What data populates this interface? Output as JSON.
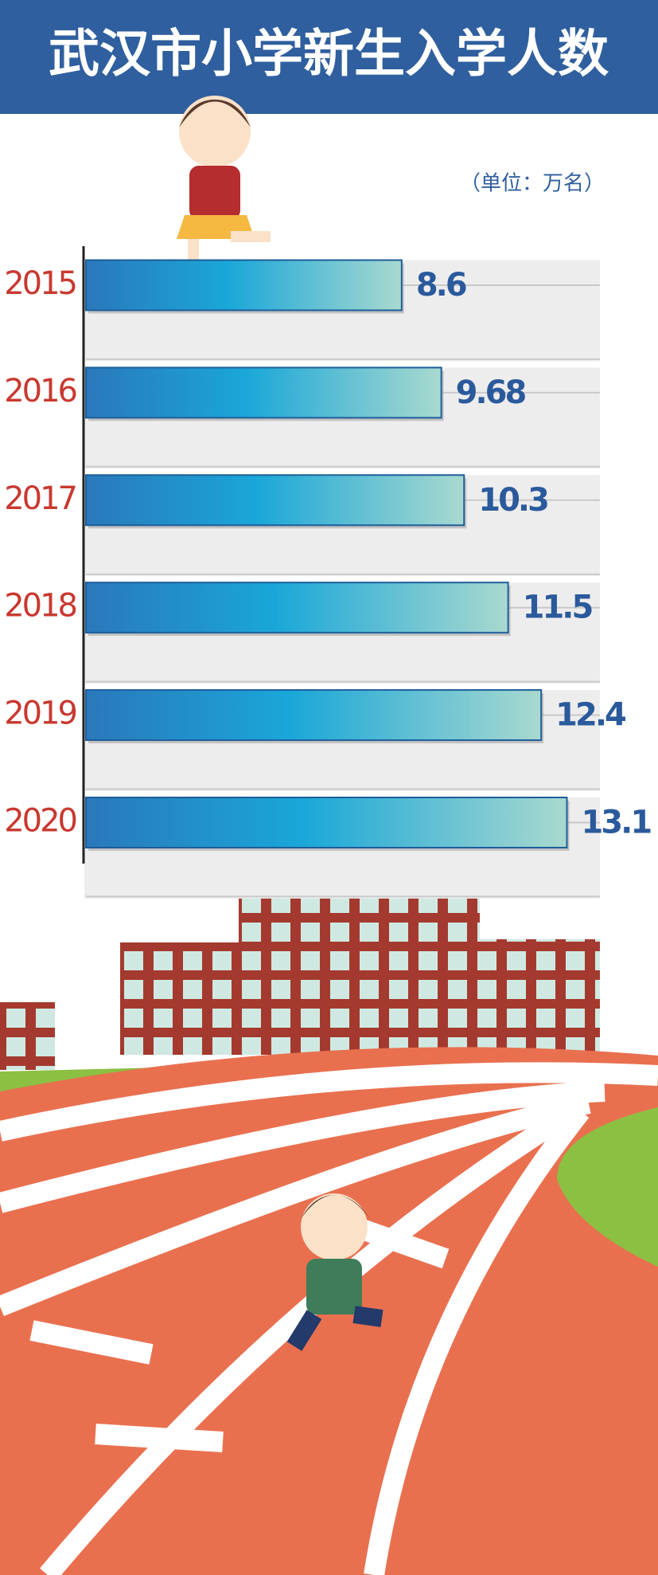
{
  "chart_data": {
    "type": "bar",
    "orientation": "horizontal",
    "title": "武汉市小学新生入学人数",
    "unit": "（单位：万名）",
    "categories": [
      "2015",
      "2016",
      "2017",
      "2018",
      "2019",
      "2020"
    ],
    "values": [
      8.6,
      9.68,
      10.3,
      11.5,
      12.4,
      13.1
    ],
    "xlim": [
      0,
      14
    ],
    "color": "#1a9fd4",
    "category_color": "#c8382f",
    "value_color": "#2a5a9c"
  }
}
